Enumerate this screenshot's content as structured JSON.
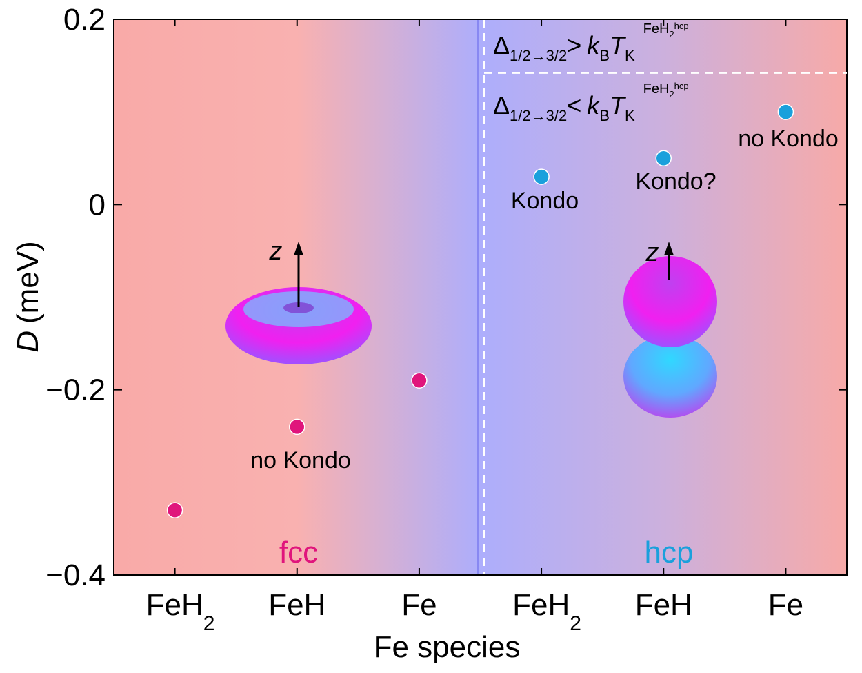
{
  "chart_data": {
    "type": "scatter",
    "xlabel": "Fe species",
    "ylabel": {
      "symbol": "D",
      "unit": "(meV)"
    },
    "categories": [
      "FeH2",
      "FeH",
      "Fe",
      "FeH2",
      "FeH",
      "Fe"
    ],
    "series": [
      {
        "name": "fcc",
        "color": "#e0157c",
        "values": [
          -0.33,
          -0.24,
          -0.19,
          null,
          null,
          null
        ]
      },
      {
        "name": "hcp",
        "color": "#1aa0dc",
        "values": [
          null,
          null,
          null,
          0.03,
          0.05,
          0.1
        ]
      }
    ],
    "ylim": [
      -0.4,
      0.2
    ],
    "yticks": [
      {
        "value": -0.4,
        "label": "−0.4"
      },
      {
        "value": -0.2,
        "label": "−0.2"
      },
      0,
      0.2
    ],
    "annotations": [
      "no Kondo",
      "Kondo",
      "Kondo?",
      "no Kondo"
    ],
    "threshold": 0.142,
    "threshold_labels": [
      [
        "Δ",
        "1/2→3/2",
        ">",
        "k",
        "B",
        "T",
        "K",
        "FeH",
        "2",
        "hcp"
      ],
      [
        "Δ",
        "1/2→3/2",
        "<",
        "k",
        "B",
        "T",
        "K",
        "FeH",
        "2",
        "hcp"
      ]
    ],
    "axis_symbol": "z"
  }
}
